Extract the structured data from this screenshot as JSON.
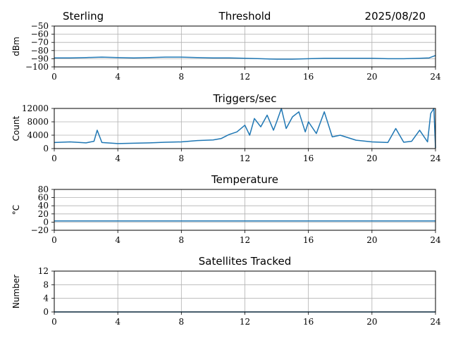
{
  "header": {
    "station": "Sterling",
    "date": "2025/08/20"
  },
  "chart_data": [
    {
      "type": "line",
      "title": "Threshold",
      "ylabel": "dBm",
      "ylim": [
        -100,
        -50
      ],
      "yticks": [
        -50,
        -60,
        -70,
        -80,
        -90,
        -100
      ],
      "ytick_labels": [
        "−50",
        "−60",
        "−70",
        "−80",
        "−90",
        "−100"
      ],
      "xlim": [
        0,
        24
      ],
      "xticks": [
        0,
        4,
        8,
        12,
        16,
        20,
        24
      ],
      "grid": true,
      "color": "#1f77b4",
      "series": [
        {
          "x": [
            0,
            1,
            2,
            3,
            4,
            5,
            6,
            7,
            8,
            9,
            10,
            11,
            12,
            13,
            14,
            15,
            16,
            17,
            18,
            19,
            20,
            21,
            22,
            23,
            23.6,
            24
          ],
          "values": [
            -89,
            -89,
            -88.5,
            -88,
            -88.5,
            -89,
            -88.5,
            -88,
            -88,
            -88.5,
            -89,
            -89,
            -89.5,
            -90,
            -90.5,
            -90.5,
            -90,
            -89.5,
            -89.5,
            -89.5,
            -89.5,
            -90,
            -90,
            -89.5,
            -89,
            -86
          ]
        }
      ]
    },
    {
      "type": "line",
      "title": "Triggers/sec",
      "ylabel": "Count",
      "ylim": [
        0,
        12000
      ],
      "yticks": [
        0,
        4000,
        8000,
        12000
      ],
      "ytick_labels": [
        "0",
        "4000",
        "8000",
        "12000"
      ],
      "xlim": [
        0,
        24
      ],
      "xticks": [
        0,
        4,
        8,
        12,
        16,
        20,
        24
      ],
      "grid": true,
      "color": "#1f77b4",
      "series": [
        {
          "x": [
            0,
            1,
            2,
            2.5,
            2.7,
            3,
            4,
            5,
            6,
            7,
            8,
            9,
            10,
            10.5,
            11,
            11.5,
            12,
            12.3,
            12.6,
            13,
            13.4,
            13.8,
            14,
            14.3,
            14.6,
            15,
            15.4,
            15.8,
            16,
            16.5,
            17,
            17.5,
            18,
            19,
            20,
            21,
            21.5,
            22,
            22.5,
            23,
            23.5,
            23.7,
            23.9,
            24
          ],
          "values": [
            1800,
            2000,
            1700,
            2200,
            5500,
            1800,
            1500,
            1600,
            1700,
            1900,
            2000,
            2400,
            2600,
            3000,
            4200,
            5000,
            7000,
            4000,
            9000,
            6500,
            10000,
            5500,
            8000,
            12000,
            6000,
            9500,
            11000,
            5000,
            8000,
            4500,
            11000,
            3500,
            4000,
            2500,
            2000,
            1800,
            6000,
            1900,
            2200,
            5500,
            2000,
            10500,
            12000,
            200
          ]
        }
      ]
    },
    {
      "type": "line",
      "title": "Temperature",
      "ylabel": "°C",
      "ylim": [
        -20,
        80
      ],
      "yticks": [
        -20,
        0,
        20,
        40,
        60,
        80
      ],
      "ytick_labels": [
        "−20",
        "0",
        "20",
        "40",
        "60",
        "80"
      ],
      "xlim": [
        0,
        24
      ],
      "xticks": [
        0,
        4,
        8,
        12,
        16,
        20,
        24
      ],
      "grid": true,
      "color": "#1f77b4",
      "series": [
        {
          "x": [
            0,
            4,
            8,
            12,
            16,
            20,
            24
          ],
          "values": [
            3,
            3,
            3,
            3,
            3,
            3,
            3
          ]
        }
      ]
    },
    {
      "type": "line",
      "title": "Satellites Tracked",
      "ylabel": "Number",
      "ylim": [
        0,
        12
      ],
      "yticks": [
        0,
        4,
        8,
        12
      ],
      "ytick_labels": [
        "0",
        "4",
        "8",
        "12"
      ],
      "xlim": [
        0,
        24
      ],
      "xticks": [
        0,
        4,
        8,
        12,
        16,
        20,
        24
      ],
      "grid": true,
      "color": "#1f77b4",
      "series": [
        {
          "x": [
            0,
            24
          ],
          "values": [
            0,
            0
          ]
        }
      ]
    }
  ]
}
